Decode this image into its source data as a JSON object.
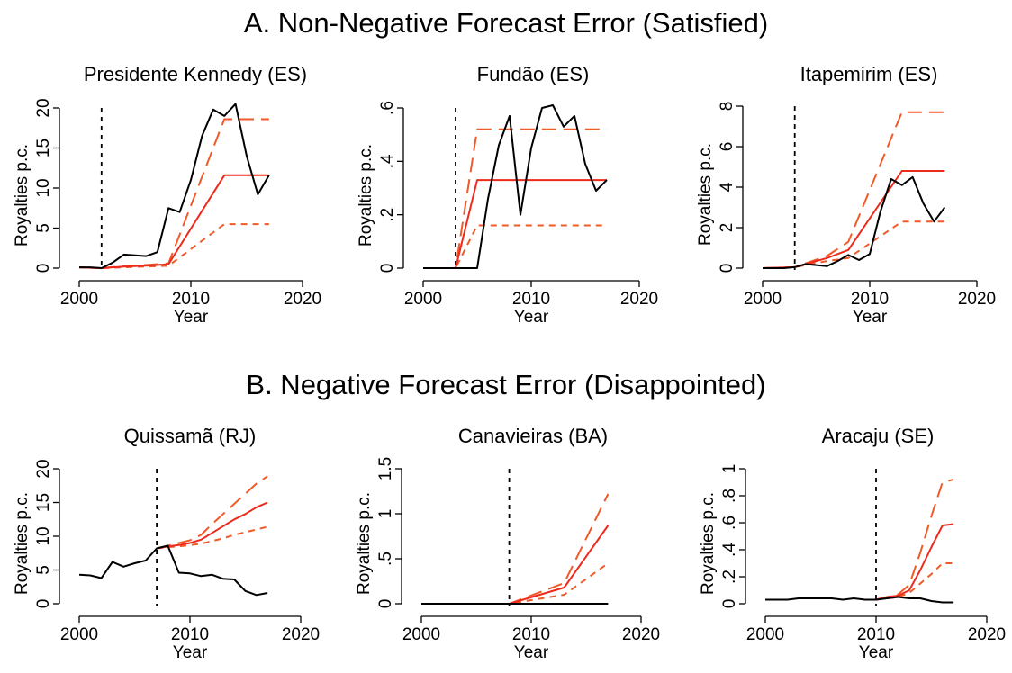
{
  "sections": [
    {
      "title": "A. Non-Negative Forecast Error (Satisfied)"
    },
    {
      "title": "B. Negative Forecast Error (Disappointed)"
    }
  ],
  "style": {
    "observed": "#000000",
    "forecast": "#ee2a1c",
    "band": "#f05a28"
  },
  "chart_data": [
    {
      "type": "line",
      "title": "Presidente Kennedy (ES)",
      "xlabel": "Year",
      "ylabel": "Royalties p.c.",
      "xlim": [
        2000,
        2020
      ],
      "ylim": [
        0,
        20
      ],
      "xticks": [
        2000,
        2010,
        2020
      ],
      "yticks": [
        0,
        5,
        10,
        15,
        20
      ],
      "ytick_labels": [
        "0",
        "5",
        "10",
        "15",
        "20"
      ],
      "vline": 2002,
      "series": [
        {
          "role": "observed",
          "x": [
            2000,
            2001,
            2002,
            2003,
            2004,
            2005,
            2006,
            2007,
            2008,
            2009,
            2010,
            2011,
            2012,
            2013,
            2014,
            2015,
            2016,
            2017
          ],
          "y": [
            0.1,
            0.1,
            0.0,
            0.7,
            1.7,
            1.6,
            1.5,
            2.0,
            7.5,
            7.0,
            11.0,
            16.5,
            19.8,
            19.0,
            20.5,
            14.0,
            9.2,
            11.6
          ]
        },
        {
          "role": "forecast",
          "x": [
            2000,
            2002,
            2004,
            2006,
            2008,
            2013,
            2017
          ],
          "y": [
            0.1,
            0.0,
            0.2,
            0.3,
            0.5,
            11.6,
            11.6
          ]
        },
        {
          "role": "upper",
          "x": [
            2000,
            2002,
            2004,
            2006,
            2008,
            2013,
            2017
          ],
          "y": [
            0.1,
            0.0,
            0.25,
            0.4,
            0.6,
            18.6,
            18.6
          ]
        },
        {
          "role": "lower",
          "x": [
            2000,
            2002,
            2004,
            2006,
            2008,
            2013,
            2017
          ],
          "y": [
            0.1,
            0.0,
            0.1,
            0.2,
            0.3,
            5.5,
            5.5
          ]
        }
      ]
    },
    {
      "type": "line",
      "title": "Fundão (ES)",
      "xlabel": "Year",
      "ylabel": "Royalties p.c.",
      "xlim": [
        2000,
        2020
      ],
      "ylim": [
        0,
        0.6
      ],
      "xticks": [
        2000,
        2010,
        2020
      ],
      "yticks": [
        0,
        0.2,
        0.4,
        0.6
      ],
      "ytick_labels": [
        "0",
        ".2",
        ".4",
        ".6"
      ],
      "vline": 2003,
      "series": [
        {
          "role": "observed",
          "x": [
            2000,
            2001,
            2002,
            2003,
            2004,
            2005,
            2006,
            2007,
            2008,
            2009,
            2010,
            2011,
            2012,
            2013,
            2014,
            2015,
            2016,
            2017
          ],
          "y": [
            0,
            0,
            0,
            0,
            0,
            0,
            0.26,
            0.46,
            0.57,
            0.2,
            0.45,
            0.6,
            0.61,
            0.53,
            0.57,
            0.39,
            0.29,
            0.33
          ]
        },
        {
          "role": "forecast",
          "x": [
            2000,
            2003,
            2005,
            2017
          ],
          "y": [
            0,
            0,
            0.33,
            0.33
          ]
        },
        {
          "role": "upper",
          "x": [
            2000,
            2003,
            2005,
            2017
          ],
          "y": [
            0,
            0,
            0.52,
            0.52
          ]
        },
        {
          "role": "lower",
          "x": [
            2000,
            2003,
            2005,
            2017
          ],
          "y": [
            0,
            0,
            0.16,
            0.16
          ]
        }
      ]
    },
    {
      "type": "line",
      "title": "Itapemirim (ES)",
      "xlabel": "Year",
      "ylabel": "Royalties p.c.",
      "xlim": [
        2000,
        2020
      ],
      "ylim": [
        0,
        8
      ],
      "xticks": [
        2000,
        2010,
        2020
      ],
      "yticks": [
        0,
        2,
        4,
        6,
        8
      ],
      "ytick_labels": [
        "0",
        "2",
        "4",
        "6",
        "8"
      ],
      "vline": 2003,
      "series": [
        {
          "role": "observed",
          "x": [
            2000,
            2001,
            2002,
            2003,
            2004,
            2005,
            2006,
            2007,
            2008,
            2009,
            2010,
            2011,
            2012,
            2013,
            2014,
            2015,
            2016,
            2017
          ],
          "y": [
            0,
            0,
            0,
            0.05,
            0.2,
            0.15,
            0.1,
            0.35,
            0.65,
            0.4,
            0.7,
            2.8,
            4.4,
            4.1,
            4.5,
            3.2,
            2.3,
            3.0
          ]
        },
        {
          "role": "forecast",
          "x": [
            2000,
            2003,
            2006,
            2008,
            2013,
            2017
          ],
          "y": [
            0,
            0.05,
            0.5,
            0.9,
            4.8,
            4.8
          ]
        },
        {
          "role": "upper",
          "x": [
            2000,
            2003,
            2006,
            2008,
            2013,
            2017
          ],
          "y": [
            0,
            0.05,
            0.6,
            1.3,
            7.7,
            7.7
          ]
        },
        {
          "role": "lower",
          "x": [
            2000,
            2003,
            2006,
            2008,
            2013,
            2017
          ],
          "y": [
            0,
            0.05,
            0.35,
            0.5,
            2.3,
            2.3
          ]
        }
      ]
    },
    {
      "type": "line",
      "title": "Quissamã (RJ)",
      "xlabel": "Year",
      "ylabel": "Royalties p.c.",
      "xlim": [
        2000,
        2020
      ],
      "ylim": [
        0,
        20
      ],
      "xticks": [
        2000,
        2010,
        2020
      ],
      "yticks": [
        0,
        5,
        10,
        15,
        20
      ],
      "ytick_labels": [
        "0",
        "5",
        "10",
        "15",
        "20"
      ],
      "vline": 2007,
      "series": [
        {
          "role": "observed",
          "x": [
            2000,
            2001,
            2002,
            2003,
            2004,
            2005,
            2006,
            2007,
            2008,
            2009,
            2010,
            2011,
            2012,
            2013,
            2014,
            2015,
            2016,
            2017
          ],
          "y": [
            4.3,
            4.2,
            3.8,
            6.2,
            5.5,
            6.0,
            6.4,
            8.2,
            8.6,
            4.6,
            4.5,
            4.1,
            4.3,
            3.7,
            3.6,
            1.9,
            1.3,
            1.6
          ]
        },
        {
          "role": "forecast",
          "x": [
            2007,
            2008,
            2009,
            2010,
            2011,
            2012,
            2013,
            2014,
            2015,
            2016,
            2017
          ],
          "y": [
            8.2,
            8.5,
            8.7,
            9.0,
            9.5,
            10.5,
            11.5,
            12.5,
            13.3,
            14.3,
            15.0
          ]
        },
        {
          "role": "upper",
          "x": [
            2007,
            2008,
            2009,
            2010,
            2011,
            2012,
            2013,
            2014,
            2015,
            2016,
            2017
          ],
          "y": [
            8.2,
            8.6,
            9.0,
            9.4,
            10.2,
            11.8,
            13.3,
            14.8,
            16.3,
            17.8,
            18.9
          ]
        },
        {
          "role": "lower",
          "x": [
            2007,
            2008,
            2009,
            2010,
            2011,
            2012,
            2013,
            2014,
            2015,
            2016,
            2017
          ],
          "y": [
            8.2,
            8.4,
            8.5,
            8.7,
            8.9,
            9.3,
            9.7,
            10.2,
            10.6,
            11.0,
            11.4
          ]
        }
      ]
    },
    {
      "type": "line",
      "title": "Canavieiras (BA)",
      "xlabel": "Year",
      "ylabel": "Royalties p.c.",
      "xlim": [
        2000,
        2020
      ],
      "ylim": [
        0,
        1.5
      ],
      "xticks": [
        2000,
        2010,
        2020
      ],
      "yticks": [
        0,
        0.5,
        1,
        1.5
      ],
      "ytick_labels": [
        "0",
        ".5",
        "1",
        "1.5"
      ],
      "vline": 2008,
      "series": [
        {
          "role": "observed",
          "x": [
            2000,
            2017
          ],
          "y": [
            0,
            0
          ]
        },
        {
          "role": "forecast",
          "x": [
            2000,
            2008,
            2013,
            2017
          ],
          "y": [
            0,
            0,
            0.18,
            0.87
          ]
        },
        {
          "role": "upper",
          "x": [
            2000,
            2008,
            2013,
            2017
          ],
          "y": [
            0,
            0,
            0.23,
            1.22
          ]
        },
        {
          "role": "lower",
          "x": [
            2000,
            2008,
            2013,
            2017
          ],
          "y": [
            0,
            0,
            0.1,
            0.45
          ]
        }
      ]
    },
    {
      "type": "line",
      "title": "Aracaju (SE)",
      "xlabel": "Year",
      "ylabel": "Royalties p.c.",
      "xlim": [
        2000,
        2020
      ],
      "ylim": [
        0,
        1
      ],
      "xticks": [
        2000,
        2010,
        2020
      ],
      "yticks": [
        0,
        0.2,
        0.4,
        0.6,
        0.8,
        1
      ],
      "ytick_labels": [
        "0",
        ".2",
        ".4",
        ".6",
        ".8",
        "1"
      ],
      "vline": 2010,
      "series": [
        {
          "role": "observed",
          "x": [
            2000,
            2001,
            2002,
            2003,
            2004,
            2005,
            2006,
            2007,
            2008,
            2009,
            2010,
            2011,
            2012,
            2013,
            2014,
            2015,
            2016,
            2017
          ],
          "y": [
            0.03,
            0.03,
            0.03,
            0.04,
            0.04,
            0.04,
            0.04,
            0.03,
            0.04,
            0.03,
            0.03,
            0.04,
            0.05,
            0.04,
            0.04,
            0.02,
            0.01,
            0.01
          ]
        },
        {
          "role": "forecast",
          "x": [
            2010,
            2011,
            2012,
            2013,
            2014,
            2015,
            2016,
            2017
          ],
          "y": [
            0.03,
            0.05,
            0.06,
            0.1,
            0.25,
            0.42,
            0.58,
            0.59
          ]
        },
        {
          "role": "upper",
          "x": [
            2010,
            2011,
            2012,
            2013,
            2014,
            2015,
            2016,
            2017
          ],
          "y": [
            0.03,
            0.05,
            0.07,
            0.14,
            0.38,
            0.65,
            0.9,
            0.92
          ]
        },
        {
          "role": "lower",
          "x": [
            2010,
            2011,
            2012,
            2013,
            2014,
            2015,
            2016,
            2017
          ],
          "y": [
            0.03,
            0.04,
            0.05,
            0.08,
            0.15,
            0.22,
            0.3,
            0.3
          ]
        }
      ]
    }
  ]
}
